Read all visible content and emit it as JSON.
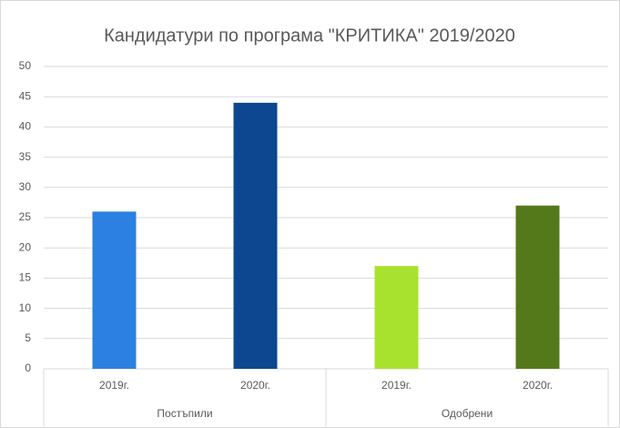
{
  "chart_data": {
    "type": "bar",
    "title": "Кандидатури по програма \"КРИТИКА\" 2019/2020",
    "categories": [
      "2019г.",
      "2020г.",
      "2019г.",
      "2020г."
    ],
    "groups": [
      "Постъпили",
      "Одобрени"
    ],
    "values": [
      26,
      44,
      17,
      27
    ],
    "colors": [
      "#2b80e2",
      "#0d4790",
      "#a8e22f",
      "#54791a"
    ],
    "ylim": [
      0,
      50
    ],
    "yticks": [
      0,
      5,
      10,
      15,
      20,
      25,
      30,
      35,
      40,
      45,
      50
    ],
    "grid": true
  }
}
